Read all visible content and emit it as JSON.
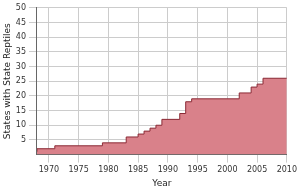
{
  "chart_data": {
    "type": "step_area",
    "x_label": "Year",
    "y_label": "States with State Reptiles",
    "x": [
      1968,
      1971,
      1979,
      1983,
      1985,
      1986,
      1987,
      1988,
      1989,
      1992,
      1993,
      1994,
      2002,
      2004,
      2005,
      2006,
      2007,
      2010
    ],
    "values": [
      1,
      2,
      3,
      4,
      6,
      7,
      8,
      9,
      10,
      12,
      14,
      18,
      19,
      21,
      23,
      24,
      26,
      26
    ],
    "color": "#d9818a",
    "xlim": [
      1968,
      2010
    ],
    "xticks": [
      1970,
      1975,
      1980,
      1985,
      1990,
      1995,
      2000,
      2005,
      2010
    ],
    "ylim": [
      0,
      50
    ],
    "yticks": [
      5,
      10,
      15,
      20,
      25,
      30,
      35,
      40,
      45,
      50
    ],
    "grid": true
  }
}
